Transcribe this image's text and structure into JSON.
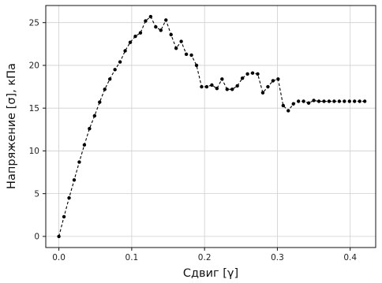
{
  "chart_data": {
    "type": "line",
    "title": "",
    "xlabel": "Сдвиг [γ]",
    "ylabel": "Напряжение [σ], кПа",
    "xlim": [
      -0.018,
      0.435
    ],
    "ylim": [
      -1.3,
      27
    ],
    "xticks": [
      0.0,
      0.1,
      0.2,
      0.3,
      0.4
    ],
    "xtick_labels": [
      "0.0",
      "0.1",
      "0.2",
      "0.3",
      "0.4"
    ],
    "yticks": [
      0,
      5,
      10,
      15,
      20,
      25
    ],
    "ytick_labels": [
      "0",
      "5",
      "10",
      "15",
      "20",
      "25"
    ],
    "grid": true,
    "legend": "none",
    "series": [
      {
        "color": "#000000",
        "line_style": "dashed",
        "marker": "dot",
        "x": [
          0.0,
          0.007,
          0.014,
          0.021,
          0.028,
          0.035,
          0.042,
          0.049,
          0.056,
          0.063,
          0.07,
          0.077,
          0.084,
          0.091,
          0.098,
          0.105,
          0.112,
          0.119,
          0.126,
          0.133,
          0.14,
          0.147,
          0.154,
          0.161,
          0.168,
          0.175,
          0.182,
          0.189,
          0.196,
          0.203,
          0.21,
          0.217,
          0.224,
          0.231,
          0.238,
          0.245,
          0.252,
          0.259,
          0.266,
          0.273,
          0.28,
          0.287,
          0.294,
          0.301,
          0.308,
          0.315,
          0.322,
          0.329,
          0.336,
          0.343,
          0.35,
          0.357,
          0.364,
          0.371,
          0.378,
          0.385,
          0.392,
          0.399,
          0.406,
          0.413,
          0.42
        ],
        "y": [
          0.0,
          2.3,
          4.5,
          6.6,
          8.7,
          10.7,
          12.6,
          14.1,
          15.7,
          17.2,
          18.4,
          19.5,
          20.4,
          21.7,
          22.7,
          23.4,
          23.8,
          25.2,
          25.7,
          24.5,
          24.1,
          25.3,
          23.6,
          22.0,
          22.8,
          21.3,
          21.2,
          20.0,
          17.5,
          17.5,
          17.7,
          17.3,
          18.4,
          17.2,
          17.2,
          17.6,
          18.5,
          19.0,
          19.1,
          19.0,
          16.8,
          17.5,
          18.2,
          18.4,
          15.3,
          14.7,
          15.5,
          15.8,
          15.8,
          15.6,
          15.9,
          15.8,
          15.8,
          15.8,
          15.8,
          15.8,
          15.8,
          15.8,
          15.8,
          15.8,
          15.8
        ]
      }
    ]
  }
}
